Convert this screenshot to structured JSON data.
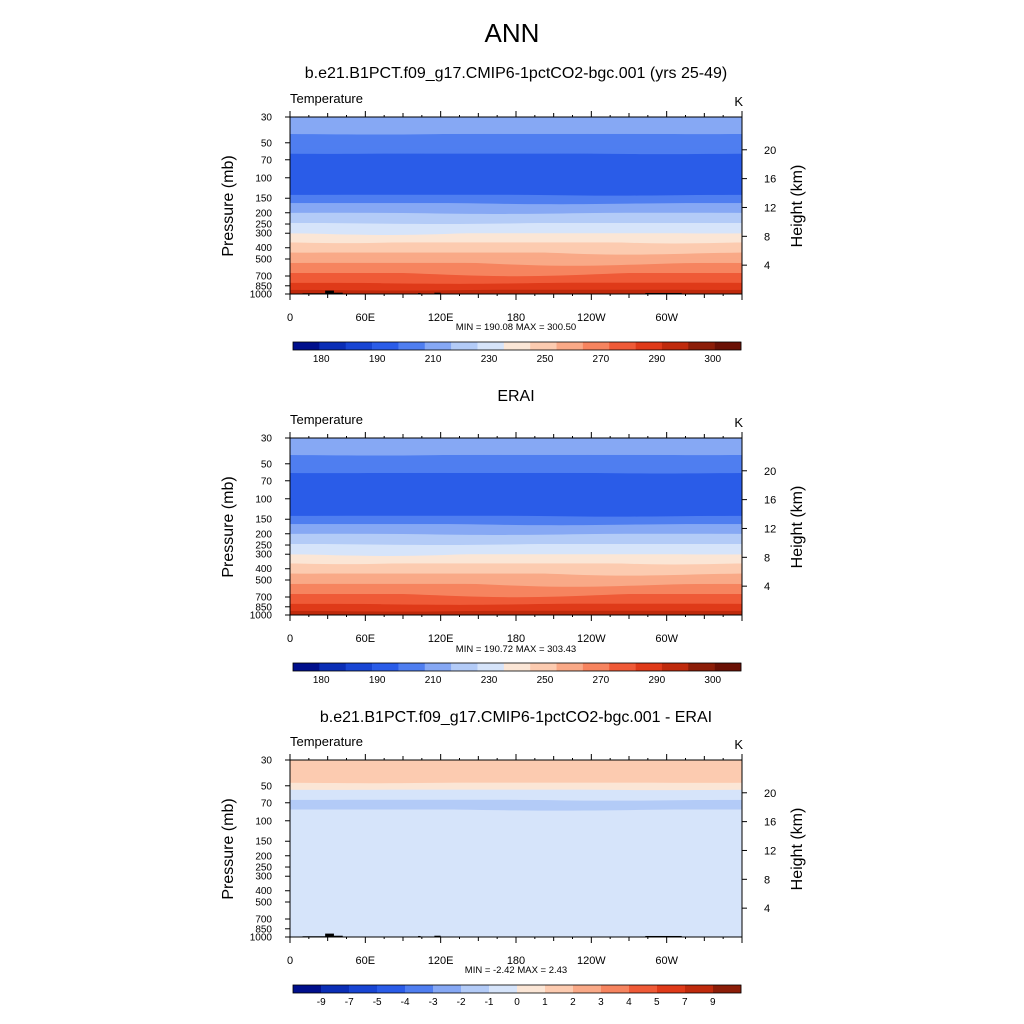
{
  "page_title": "ANN",
  "chart_data": [
    {
      "type": "contour",
      "title": "b.e21.B1PCT.f09_g17.CMIP6-1pctCO2-bgc.001 (yrs 25-49)",
      "left_label": "Temperature",
      "units": "K",
      "ylabel": "Pressure (mb)",
      "ylabel_right": "Height (km)",
      "xticks": [
        "0",
        "60E",
        "120E",
        "180",
        "120W",
        "60W"
      ],
      "xlim": [
        0,
        360
      ],
      "yticks": [
        30,
        50,
        70,
        100,
        150,
        200,
        250,
        300,
        400,
        500,
        700,
        850,
        1000
      ],
      "ylim_mb": [
        30,
        1000
      ],
      "height_ticks_km": [
        4,
        8,
        12,
        16,
        20
      ],
      "stats": "MIN = 190.08  MAX = 300.50",
      "colorbar_labels": [
        "180",
        "190",
        "210",
        "230",
        "250",
        "270",
        "290",
        "300"
      ],
      "colorbar_colors": [
        "#000f8c",
        "#0a2eb6",
        "#1845d3",
        "#2a5ce8",
        "#4f7ef0",
        "#86a8f4",
        "#b3cbf7",
        "#d6e4fa",
        "#fbe6d6",
        "#fccbb0",
        "#f9a987",
        "#f6845f",
        "#ef5a37",
        "#df3a19",
        "#bf2a0c",
        "#8c1d08",
        "#6a1005"
      ],
      "layers": [
        {
          "p_top": 30,
          "p_bottom": 42,
          "color": "#86a8f4"
        },
        {
          "p_top": 42,
          "p_bottom": 62,
          "color": "#4f7ef0"
        },
        {
          "p_top": 62,
          "p_bottom": 140,
          "color": "#2a5ce8"
        },
        {
          "p_top": 140,
          "p_bottom": 165,
          "color": "#4f7ef0"
        },
        {
          "p_top": 165,
          "p_bottom": 200,
          "color": "#86a8f4"
        },
        {
          "p_top": 200,
          "p_bottom": 245,
          "color": "#b3cbf7"
        },
        {
          "p_top": 245,
          "p_bottom": 300,
          "color": "#d6e4fa"
        },
        {
          "p_top": 300,
          "p_bottom": 360,
          "color": "#fbe6d6"
        },
        {
          "p_top": 360,
          "p_bottom": 440,
          "color": "#fccbb0"
        },
        {
          "p_top": 440,
          "p_bottom": 540,
          "color": "#f9a987"
        },
        {
          "p_top": 540,
          "p_bottom": 660,
          "color": "#f6845f"
        },
        {
          "p_top": 660,
          "p_bottom": 800,
          "color": "#ef5a37"
        },
        {
          "p_top": 800,
          "p_bottom": 920,
          "color": "#df3a19"
        },
        {
          "p_top": 920,
          "p_bottom": 1000,
          "color": "#bf2a0c"
        }
      ],
      "topography": [
        {
          "lon_start": 10,
          "lon_end": 40,
          "p": 985
        },
        {
          "lon_start": 28,
          "lon_end": 35,
          "p": 935
        },
        {
          "lon_start": 35,
          "lon_end": 42,
          "p": 975
        },
        {
          "lon_start": 102,
          "lon_end": 104,
          "p": 980
        },
        {
          "lon_start": 115,
          "lon_end": 120,
          "p": 975
        },
        {
          "lon_start": 283,
          "lon_end": 312,
          "p": 980
        }
      ]
    },
    {
      "type": "contour",
      "title": "ERAI",
      "left_label": "Temperature",
      "units": "K",
      "ylabel": "Pressure (mb)",
      "ylabel_right": "Height (km)",
      "xticks": [
        "0",
        "60E",
        "120E",
        "180",
        "120W",
        "60W"
      ],
      "xlim": [
        0,
        360
      ],
      "yticks": [
        30,
        50,
        70,
        100,
        150,
        200,
        250,
        300,
        400,
        500,
        700,
        850,
        1000
      ],
      "ylim_mb": [
        30,
        1000
      ],
      "height_ticks_km": [
        4,
        8,
        12,
        16,
        20
      ],
      "stats": "MIN = 190.72  MAX = 303.43",
      "colorbar_labels": [
        "180",
        "190",
        "210",
        "230",
        "250",
        "270",
        "290",
        "300"
      ],
      "colorbar_colors": [
        "#000f8c",
        "#0a2eb6",
        "#1845d3",
        "#2a5ce8",
        "#4f7ef0",
        "#86a8f4",
        "#b3cbf7",
        "#d6e4fa",
        "#fbe6d6",
        "#fccbb0",
        "#f9a987",
        "#f6845f",
        "#ef5a37",
        "#df3a19",
        "#bf2a0c",
        "#8c1d08",
        "#6a1005"
      ],
      "layers": [
        {
          "p_top": 30,
          "p_bottom": 42,
          "color": "#86a8f4"
        },
        {
          "p_top": 42,
          "p_bottom": 60,
          "color": "#4f7ef0"
        },
        {
          "p_top": 60,
          "p_bottom": 140,
          "color": "#2a5ce8"
        },
        {
          "p_top": 140,
          "p_bottom": 165,
          "color": "#4f7ef0"
        },
        {
          "p_top": 165,
          "p_bottom": 200,
          "color": "#86a8f4"
        },
        {
          "p_top": 200,
          "p_bottom": 245,
          "color": "#b3cbf7"
        },
        {
          "p_top": 245,
          "p_bottom": 300,
          "color": "#d6e4fa"
        },
        {
          "p_top": 300,
          "p_bottom": 360,
          "color": "#fbe6d6"
        },
        {
          "p_top": 360,
          "p_bottom": 440,
          "color": "#fccbb0"
        },
        {
          "p_top": 440,
          "p_bottom": 540,
          "color": "#f9a987"
        },
        {
          "p_top": 540,
          "p_bottom": 660,
          "color": "#f6845f"
        },
        {
          "p_top": 660,
          "p_bottom": 800,
          "color": "#ef5a37"
        },
        {
          "p_top": 800,
          "p_bottom": 920,
          "color": "#df3a19"
        },
        {
          "p_top": 920,
          "p_bottom": 1000,
          "color": "#bf2a0c"
        }
      ],
      "topography": []
    },
    {
      "type": "contour",
      "title": "b.e21.B1PCT.f09_g17.CMIP6-1pctCO2-bgc.001 - ERAI",
      "left_label": "Temperature",
      "units": "K",
      "ylabel": "Pressure (mb)",
      "ylabel_right": "Height (km)",
      "xticks": [
        "0",
        "60E",
        "120E",
        "180",
        "120W",
        "60W"
      ],
      "xlim": [
        0,
        360
      ],
      "yticks": [
        30,
        50,
        70,
        100,
        150,
        200,
        250,
        300,
        400,
        500,
        700,
        850,
        1000
      ],
      "ylim_mb": [
        30,
        1000
      ],
      "height_ticks_km": [
        4,
        8,
        12,
        16,
        20
      ],
      "stats": "MIN =  -2.42  MAX =   2.43",
      "colorbar_labels": [
        "-9",
        "-7",
        "-5",
        "-4",
        "-3",
        "-2",
        "-1",
        "0",
        "1",
        "2",
        "3",
        "4",
        "5",
        "7",
        "9"
      ],
      "colorbar_colors": [
        "#000f8c",
        "#0a2eb6",
        "#1845d3",
        "#2a5ce8",
        "#4f7ef0",
        "#86a8f4",
        "#b3cbf7",
        "#d6e4fa",
        "#fbe6d6",
        "#fccbb0",
        "#f9a987",
        "#f6845f",
        "#ef5a37",
        "#df3a19",
        "#bf2a0c",
        "#8c1d08"
      ],
      "layers": [
        {
          "p_top": 30,
          "p_bottom": 47,
          "color": "#fccbb0"
        },
        {
          "p_top": 47,
          "p_bottom": 54,
          "color": "#fbe6d6"
        },
        {
          "p_top": 54,
          "p_bottom": 66,
          "color": "#d6e4fa"
        },
        {
          "p_top": 66,
          "p_bottom": 80,
          "color": "#b3cbf7"
        },
        {
          "p_top": 80,
          "p_bottom": 1000,
          "color": "#d6e4fa"
        }
      ],
      "topography": [
        {
          "lon_start": 10,
          "lon_end": 40,
          "p": 985
        },
        {
          "lon_start": 28,
          "lon_end": 35,
          "p": 935
        },
        {
          "lon_start": 35,
          "lon_end": 42,
          "p": 975
        },
        {
          "lon_start": 102,
          "lon_end": 104,
          "p": 980
        },
        {
          "lon_start": 115,
          "lon_end": 120,
          "p": 975
        },
        {
          "lon_start": 283,
          "lon_end": 312,
          "p": 980
        }
      ]
    }
  ]
}
